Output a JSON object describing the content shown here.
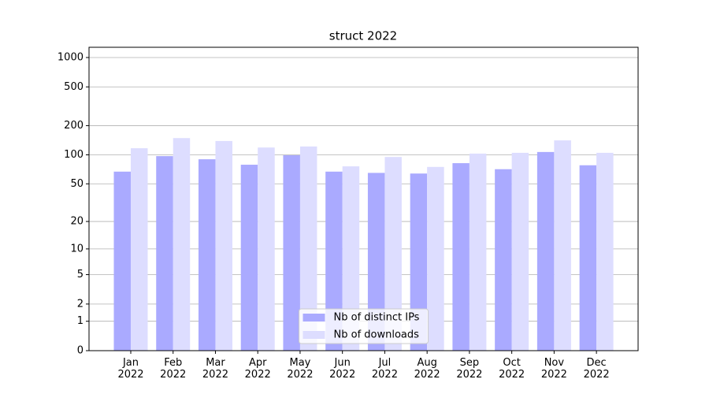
{
  "chart_data": {
    "type": "bar",
    "title": "struct 2022",
    "categories": [
      "Jan\n2022",
      "Feb\n2022",
      "Mar\n2022",
      "Apr\n2022",
      "May\n2022",
      "Jun\n2022",
      "Jul\n2022",
      "Aug\n2022",
      "Sep\n2022",
      "Oct\n2022",
      "Nov\n2022",
      "Dec\n2022"
    ],
    "series": [
      {
        "name": "Nb of distinct IPs",
        "color": "#aaaaff",
        "values": [
          67,
          97,
          90,
          79,
          99,
          67,
          65,
          64,
          82,
          71,
          107,
          78
        ]
      },
      {
        "name": "Nb of downloads",
        "color": "#ddddff",
        "values": [
          117,
          149,
          139,
          119,
          122,
          76,
          95,
          75,
          103,
          105,
          141,
          105
        ]
      }
    ],
    "yscale": "log1p",
    "ylim": [
      0,
      1273
    ],
    "yticks": [
      0,
      1,
      2,
      5,
      10,
      20,
      50,
      100,
      200,
      500,
      1000
    ],
    "grid": true,
    "legend": "lower center"
  }
}
